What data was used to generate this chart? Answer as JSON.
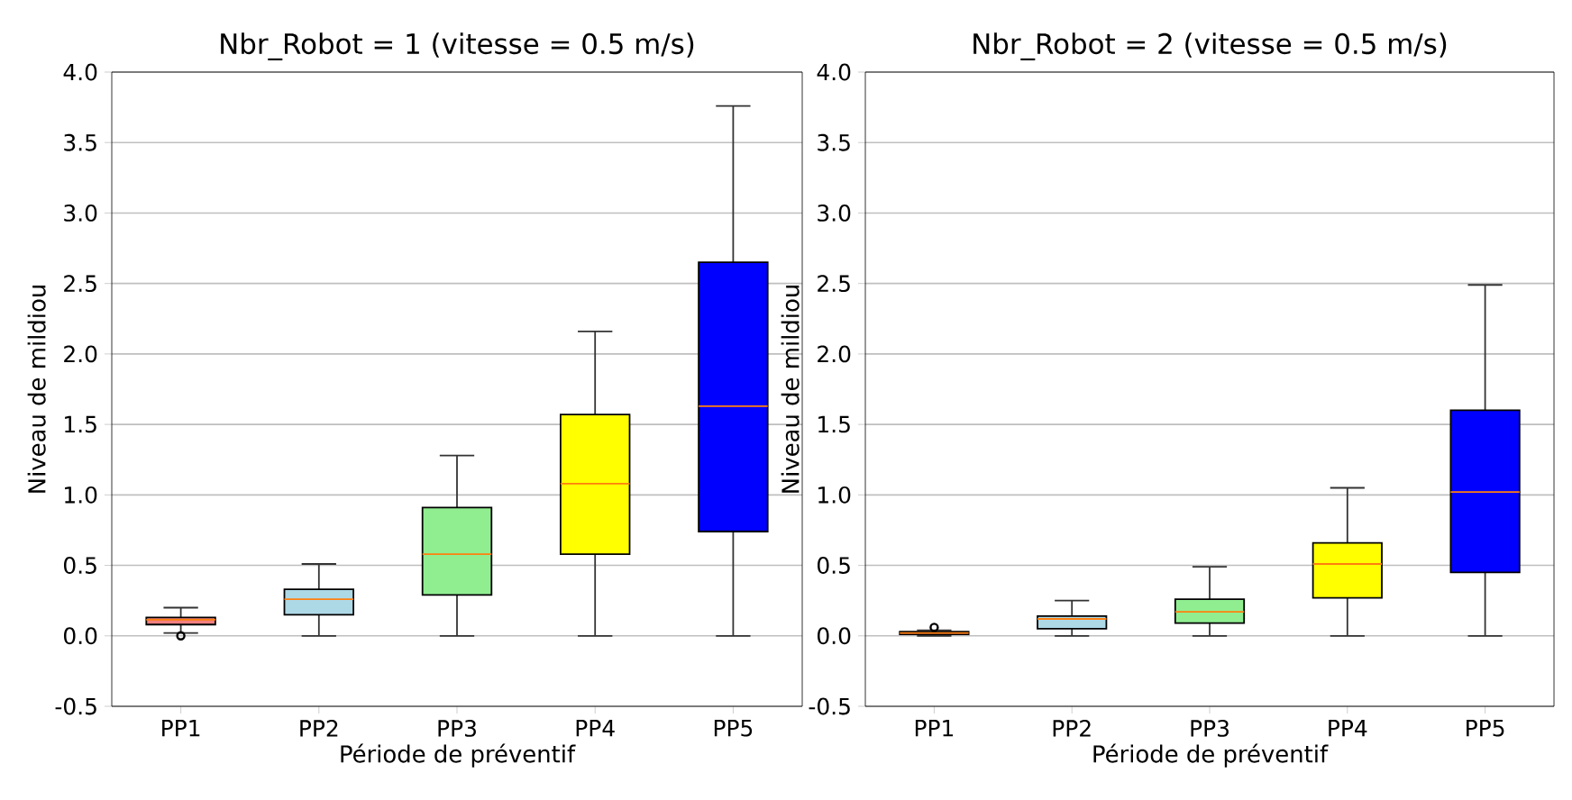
{
  "chart_data": [
    {
      "type": "box",
      "title": "Nbr_Robot = 1 (vitesse = 0.5 m/s)",
      "xlabel": "Période de préventif",
      "ylabel": "Niveau de mildiou",
      "categories": [
        "PP1",
        "PP2",
        "PP3",
        "PP4",
        "PP5"
      ],
      "colors": [
        "#f08080",
        "#add8e6",
        "#90ee90",
        "#ffff00",
        "#0000ff"
      ],
      "ylim": [
        -0.5,
        4.0
      ],
      "yticks": [
        -0.5,
        {
          "value": 0,
          "label": "0.0"
        },
        0.5,
        {
          "value": 1,
          "label": "1.0"
        },
        1.5,
        {
          "value": 2,
          "label": "2.0"
        },
        2.5,
        {
          "value": 3,
          "label": "3.0"
        },
        3.5,
        {
          "value": 4,
          "label": "4.0"
        }
      ],
      "grid": "y",
      "boxes": [
        {
          "low": 0.02,
          "q1": 0.08,
          "median": 0.115,
          "q3": 0.13,
          "high": 0.2,
          "outliers": [
            0.0
          ]
        },
        {
          "low": 0.0,
          "q1": 0.15,
          "median": 0.26,
          "q3": 0.33,
          "high": 0.51
        },
        {
          "low": 0.0,
          "q1": 0.29,
          "median": 0.58,
          "q3": 0.91,
          "high": 1.28
        },
        {
          "low": 0.0,
          "q1": 0.58,
          "median": 1.08,
          "q3": 1.57,
          "high": 2.16
        },
        {
          "low": 0.0,
          "q1": 0.74,
          "median": 1.63,
          "q3": 2.65,
          "high": 3.76
        }
      ]
    },
    {
      "type": "box",
      "title": "Nbr_Robot = 2 (vitesse = 0.5 m/s)",
      "xlabel": "Période de préventif",
      "ylabel": "Niveau de mildiou",
      "categories": [
        "PP1",
        "PP2",
        "PP3",
        "PP4",
        "PP5"
      ],
      "colors": [
        "#f08080",
        "#add8e6",
        "#90ee90",
        "#ffff00",
        "#0000ff"
      ],
      "ylim": [
        -0.5,
        4.0
      ],
      "yticks": [
        -0.5,
        {
          "value": 0,
          "label": "0.0"
        },
        0.5,
        {
          "value": 1,
          "label": "1.0"
        },
        1.5,
        {
          "value": 2,
          "label": "2.0"
        },
        2.5,
        {
          "value": 3,
          "label": "3.0"
        },
        3.5,
        {
          "value": 4,
          "label": "4.0"
        }
      ],
      "grid": "y",
      "boxes": [
        {
          "low": 0.0,
          "q1": 0.01,
          "median": 0.02,
          "q3": 0.03,
          "high": 0.04,
          "outliers": [
            0.06
          ]
        },
        {
          "low": 0.0,
          "q1": 0.05,
          "median": 0.12,
          "q3": 0.14,
          "high": 0.25
        },
        {
          "low": 0.0,
          "q1": 0.09,
          "median": 0.17,
          "q3": 0.26,
          "high": 0.49
        },
        {
          "low": 0.0,
          "q1": 0.27,
          "median": 0.51,
          "q3": 0.66,
          "high": 1.05
        },
        {
          "low": 0.0,
          "q1": 0.45,
          "median": 1.02,
          "q3": 1.6,
          "high": 2.49
        }
      ]
    }
  ]
}
